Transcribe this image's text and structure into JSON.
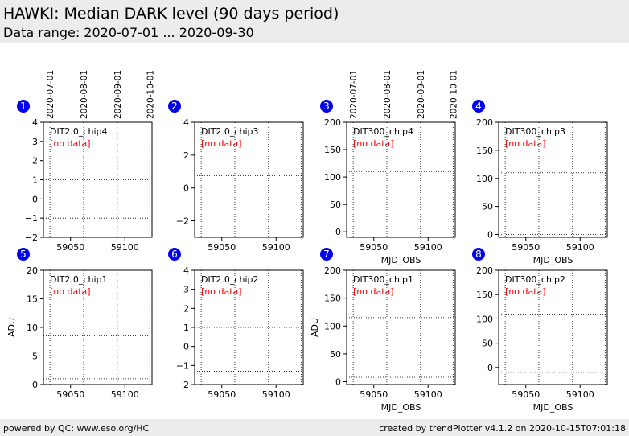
{
  "header": {
    "title": "HAWKI: Median DARK level (90 days period)",
    "subtitle": "Data range: 2020-07-01 ... 2020-09-30"
  },
  "footer": {
    "left": "powered by QC: www.eso.org/HC",
    "right": "created by trendPlotter v4.1.2 on 2020-10-15T07:01:18"
  },
  "colors": {
    "badge": "#0000ee",
    "no_data": "#ff0000",
    "header_bg": "#ececec"
  },
  "chart_data": [
    {
      "type": "scatter",
      "panel": "1",
      "label": "DIT2.0_chip4",
      "status": "[no data]",
      "xlim": [
        59025,
        59125
      ],
      "xticks": [
        59050,
        59100
      ],
      "xlabel": "",
      "ylabel": "",
      "ylim": [
        -2,
        4
      ],
      "yticks": [
        -2,
        -1,
        0,
        1,
        2,
        3,
        4
      ],
      "ytick_labels": [
        "−2",
        "−1",
        "0",
        "1",
        "2",
        "3",
        "4"
      ],
      "hlines": [
        1.0,
        -1.0
      ],
      "series": []
    },
    {
      "type": "scatter",
      "panel": "2",
      "label": "DIT2.0_chip3",
      "status": "[no data]",
      "xlim": [
        59025,
        59125
      ],
      "xticks": [
        59050,
        59100
      ],
      "xlabel": "",
      "ylabel": "",
      "ylim": [
        -3,
        4
      ],
      "yticks": [
        -2,
        0,
        2,
        4
      ],
      "ytick_labels": [
        "−2",
        "0",
        "2",
        "4"
      ],
      "hlines": [
        0.75,
        -1.7
      ],
      "series": []
    },
    {
      "type": "scatter",
      "panel": "3",
      "label": "DIT300_chip4",
      "status": "[no data]",
      "xlim": [
        59025,
        59125
      ],
      "xticks": [
        59050,
        59100
      ],
      "xlabel": "MJD_OBS",
      "ylabel": "",
      "ylim": [
        -10,
        200
      ],
      "yticks": [
        0,
        50,
        100,
        150,
        200
      ],
      "ytick_labels": [
        "0",
        "50",
        "100",
        "150",
        "200"
      ],
      "hlines": [
        110,
        -10
      ],
      "series": []
    },
    {
      "type": "scatter",
      "panel": "4",
      "label": "DIT300_chip3",
      "status": "[no data]",
      "xlim": [
        59025,
        59125
      ],
      "xticks": [
        59050,
        59100
      ],
      "xlabel": "MJD_OBS",
      "ylabel": "",
      "ylim": [
        -5,
        200
      ],
      "yticks": [
        0,
        50,
        100,
        150,
        200
      ],
      "ytick_labels": [
        "0",
        "50",
        "100",
        "150",
        "200"
      ],
      "hlines": [
        110,
        0
      ],
      "series": []
    },
    {
      "type": "scatter",
      "panel": "5",
      "label": "DIT2.0_chip1",
      "status": "[no data]",
      "xlim": [
        59025,
        59125
      ],
      "xticks": [
        59050,
        59100
      ],
      "xlabel": "",
      "ylabel": "ADU",
      "ylim": [
        0,
        20
      ],
      "yticks": [
        0,
        5,
        10,
        15,
        20
      ],
      "ytick_labels": [
        "0",
        "5",
        "10",
        "15",
        "20"
      ],
      "hlines": [
        8.5,
        1.0
      ],
      "series": []
    },
    {
      "type": "scatter",
      "panel": "6",
      "label": "DIT2.0_chip2",
      "status": "[no data]",
      "xlim": [
        59025,
        59125
      ],
      "xticks": [
        59050,
        59100
      ],
      "xlabel": "",
      "ylabel": "",
      "ylim": [
        -2,
        4
      ],
      "yticks": [
        -2,
        -1,
        0,
        1,
        2,
        3,
        4
      ],
      "ytick_labels": [
        "−2",
        "−1",
        "0",
        "1",
        "2",
        "3",
        "4"
      ],
      "hlines": [
        1.0,
        -1.3
      ],
      "series": []
    },
    {
      "type": "scatter",
      "panel": "7",
      "label": "DIT300_chip1",
      "status": "[no data]",
      "xlim": [
        59025,
        59125
      ],
      "xticks": [
        59050,
        59100
      ],
      "xlabel": "MJD_OBS",
      "ylabel": "ADU",
      "ylim": [
        -5,
        200
      ],
      "yticks": [
        0,
        50,
        100,
        150,
        200
      ],
      "ytick_labels": [
        "0",
        "50",
        "100",
        "150",
        "200"
      ],
      "hlines": [
        115,
        8
      ],
      "series": []
    },
    {
      "type": "scatter",
      "panel": "8",
      "label": "DIT300_chip2",
      "status": "[no data]",
      "xlim": [
        59025,
        59125
      ],
      "xticks": [
        59050,
        59100
      ],
      "xlabel": "MJD_OBS",
      "ylabel": "",
      "ylim": [
        -35,
        200
      ],
      "yticks": [
        0,
        50,
        100,
        150,
        200
      ],
      "ytick_labels": [
        "0",
        "50",
        "100",
        "150",
        "200"
      ],
      "hlines": [
        110,
        -10
      ],
      "series": []
    }
  ],
  "date_axis": {
    "columns": [
      "1",
      "3"
    ],
    "ticks": [
      {
        "mjd": 59031,
        "label": "2020-07-01"
      },
      {
        "mjd": 59062,
        "label": "2020-08-01"
      },
      {
        "mjd": 59093,
        "label": "2020-09-01"
      },
      {
        "mjd": 59123,
        "label": "2020-10-01"
      }
    ]
  }
}
